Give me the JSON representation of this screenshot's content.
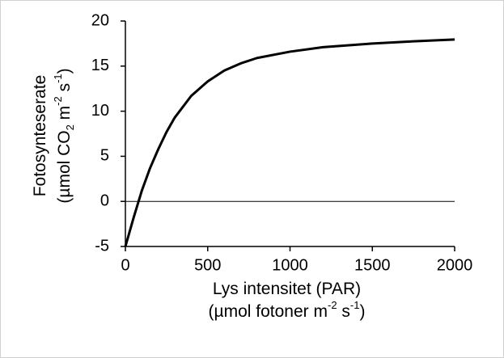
{
  "chart_data": {
    "type": "line",
    "x": [
      0,
      50,
      100,
      150,
      200,
      250,
      300,
      400,
      500,
      600,
      700,
      800,
      1000,
      1200,
      1500,
      1750,
      2000
    ],
    "series": [
      {
        "color": "#000000",
        "values": [
          -5,
          -1.8,
          1.2,
          3.7,
          5.8,
          7.7,
          9.3,
          11.7,
          13.3,
          14.5,
          15.3,
          15.9,
          16.6,
          17.1,
          17.5,
          17.75,
          17.95
        ]
      }
    ],
    "xlim": [
      0,
      2000
    ],
    "xticks": [
      0,
      500,
      1000,
      1500,
      2000
    ],
    "ylim": [
      -5,
      20
    ],
    "yticks": [
      -5,
      0,
      5,
      10,
      15,
      20
    ],
    "zero_line": true,
    "xlabel": [
      [
        {
          "text": "Lys intensitet (PAR)"
        }
      ],
      [
        {
          "text": "(µmol fotoner m"
        },
        {
          "text": "-2",
          "shift": "super"
        },
        {
          "text": " s"
        },
        {
          "text": "-1",
          "shift": "super"
        },
        {
          "text": ")"
        }
      ]
    ],
    "ylabel": [
      [
        {
          "text": "Fotosynteserate"
        }
      ],
      [
        {
          "text": "(µmol CO"
        },
        {
          "text": "2",
          "shift": "sub"
        },
        {
          "text": " m"
        },
        {
          "text": "-2",
          "shift": "super"
        },
        {
          "text": " s"
        },
        {
          "text": "-1",
          "shift": "super"
        },
        {
          "text": ")"
        }
      ]
    ]
  }
}
